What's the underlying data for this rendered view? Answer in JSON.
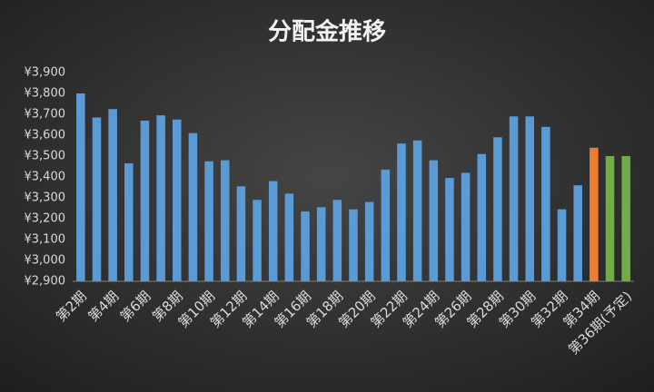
{
  "chart_data": {
    "type": "bar",
    "title": "分配金推移",
    "categories": [
      "第2期",
      null,
      "第4期",
      null,
      "第6期",
      null,
      "第8期",
      null,
      "第10期",
      null,
      "第12期",
      null,
      "第14期",
      null,
      "第16期",
      null,
      "第18期",
      null,
      "第20期",
      null,
      "第22期",
      null,
      "第24期",
      null,
      "第26期",
      null,
      "第28期",
      null,
      "第30期",
      null,
      "第32期",
      null,
      "第34期",
      null,
      "第36期(予定)"
    ],
    "values": [
      3800,
      3685,
      3725,
      3465,
      3670,
      3695,
      3675,
      3610,
      3475,
      3480,
      3355,
      3290,
      3380,
      3320,
      3235,
      3255,
      3290,
      3245,
      3280,
      3435,
      3560,
      3575,
      3480,
      3395,
      3420,
      3510,
      3590,
      3690,
      3690,
      3640,
      3245,
      3360,
      3540,
      3500,
      3500
    ],
    "colors": [
      "#5b9bd5",
      "#5b9bd5",
      "#5b9bd5",
      "#5b9bd5",
      "#5b9bd5",
      "#5b9bd5",
      "#5b9bd5",
      "#5b9bd5",
      "#5b9bd5",
      "#5b9bd5",
      "#5b9bd5",
      "#5b9bd5",
      "#5b9bd5",
      "#5b9bd5",
      "#5b9bd5",
      "#5b9bd5",
      "#5b9bd5",
      "#5b9bd5",
      "#5b9bd5",
      "#5b9bd5",
      "#5b9bd5",
      "#5b9bd5",
      "#5b9bd5",
      "#5b9bd5",
      "#5b9bd5",
      "#5b9bd5",
      "#5b9bd5",
      "#5b9bd5",
      "#5b9bd5",
      "#5b9bd5",
      "#5b9bd5",
      "#5b9bd5",
      "#ed7d31",
      "#70ad47",
      "#70ad47"
    ],
    "ylim": [
      2900,
      3900
    ],
    "yticks": [
      {
        "value": 2900,
        "label": "¥2,900"
      },
      {
        "value": 3000,
        "label": "¥3,000"
      },
      {
        "value": 3100,
        "label": "¥3,100"
      },
      {
        "value": 3200,
        "label": "¥3,200"
      },
      {
        "value": 3300,
        "label": "¥3,300"
      },
      {
        "value": 3400,
        "label": "¥3,400"
      },
      {
        "value": 3500,
        "label": "¥3,500"
      },
      {
        "value": 3600,
        "label": "¥3,600"
      },
      {
        "value": 3700,
        "label": "¥3,700"
      },
      {
        "value": 3800,
        "label": "¥3,800"
      },
      {
        "value": 3900,
        "label": "¥3,900"
      }
    ],
    "grid": false
  }
}
